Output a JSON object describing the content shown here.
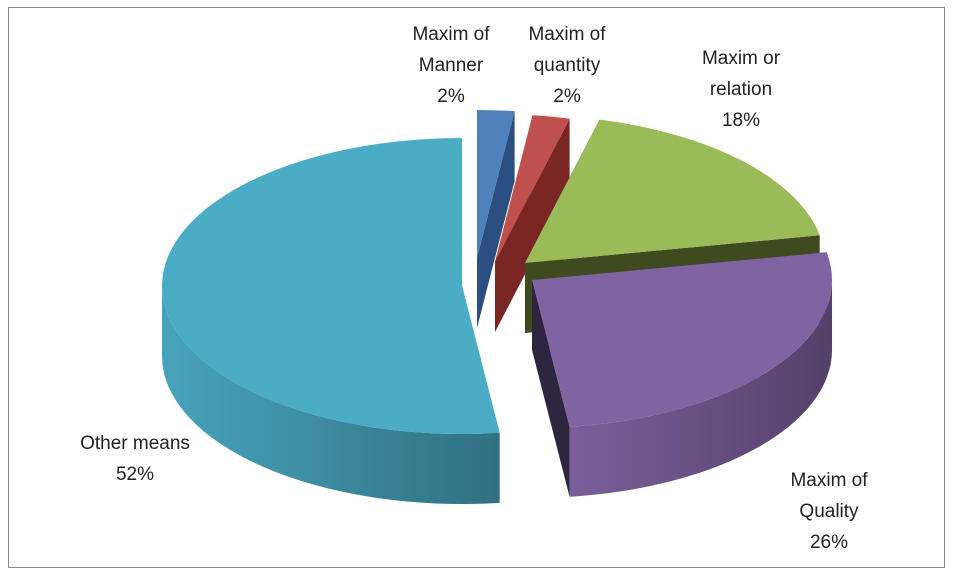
{
  "chart_data": {
    "type": "pie",
    "title": "",
    "style": "3d-exploded",
    "categories": [
      "Maxim of Manner",
      "Maxim of quantity",
      "Maxim or relation",
      "Maxim of Quality",
      "Other means"
    ],
    "values": [
      2,
      2,
      18,
      26,
      52
    ],
    "labels": [
      {
        "lines": [
          "Maxim of",
          "Manner",
          "2%"
        ]
      },
      {
        "lines": [
          "Maxim of",
          "quantity",
          "2%"
        ]
      },
      {
        "lines": [
          "Maxim or",
          "relation",
          "18%"
        ]
      },
      {
        "lines": [
          "Maxim of",
          "Quality",
          "26%"
        ]
      },
      {
        "lines": [
          "Other means",
          "52%"
        ]
      }
    ],
    "colors": [
      "#4f81bd",
      "#c0504d",
      "#9bbb59",
      "#8064a2",
      "#4bacc6"
    ],
    "side_colors": [
      "#2b4f80",
      "#7a2624",
      "#3f4a1e",
      "#2e2640",
      "#2a7a8a"
    ],
    "legend": "none"
  }
}
